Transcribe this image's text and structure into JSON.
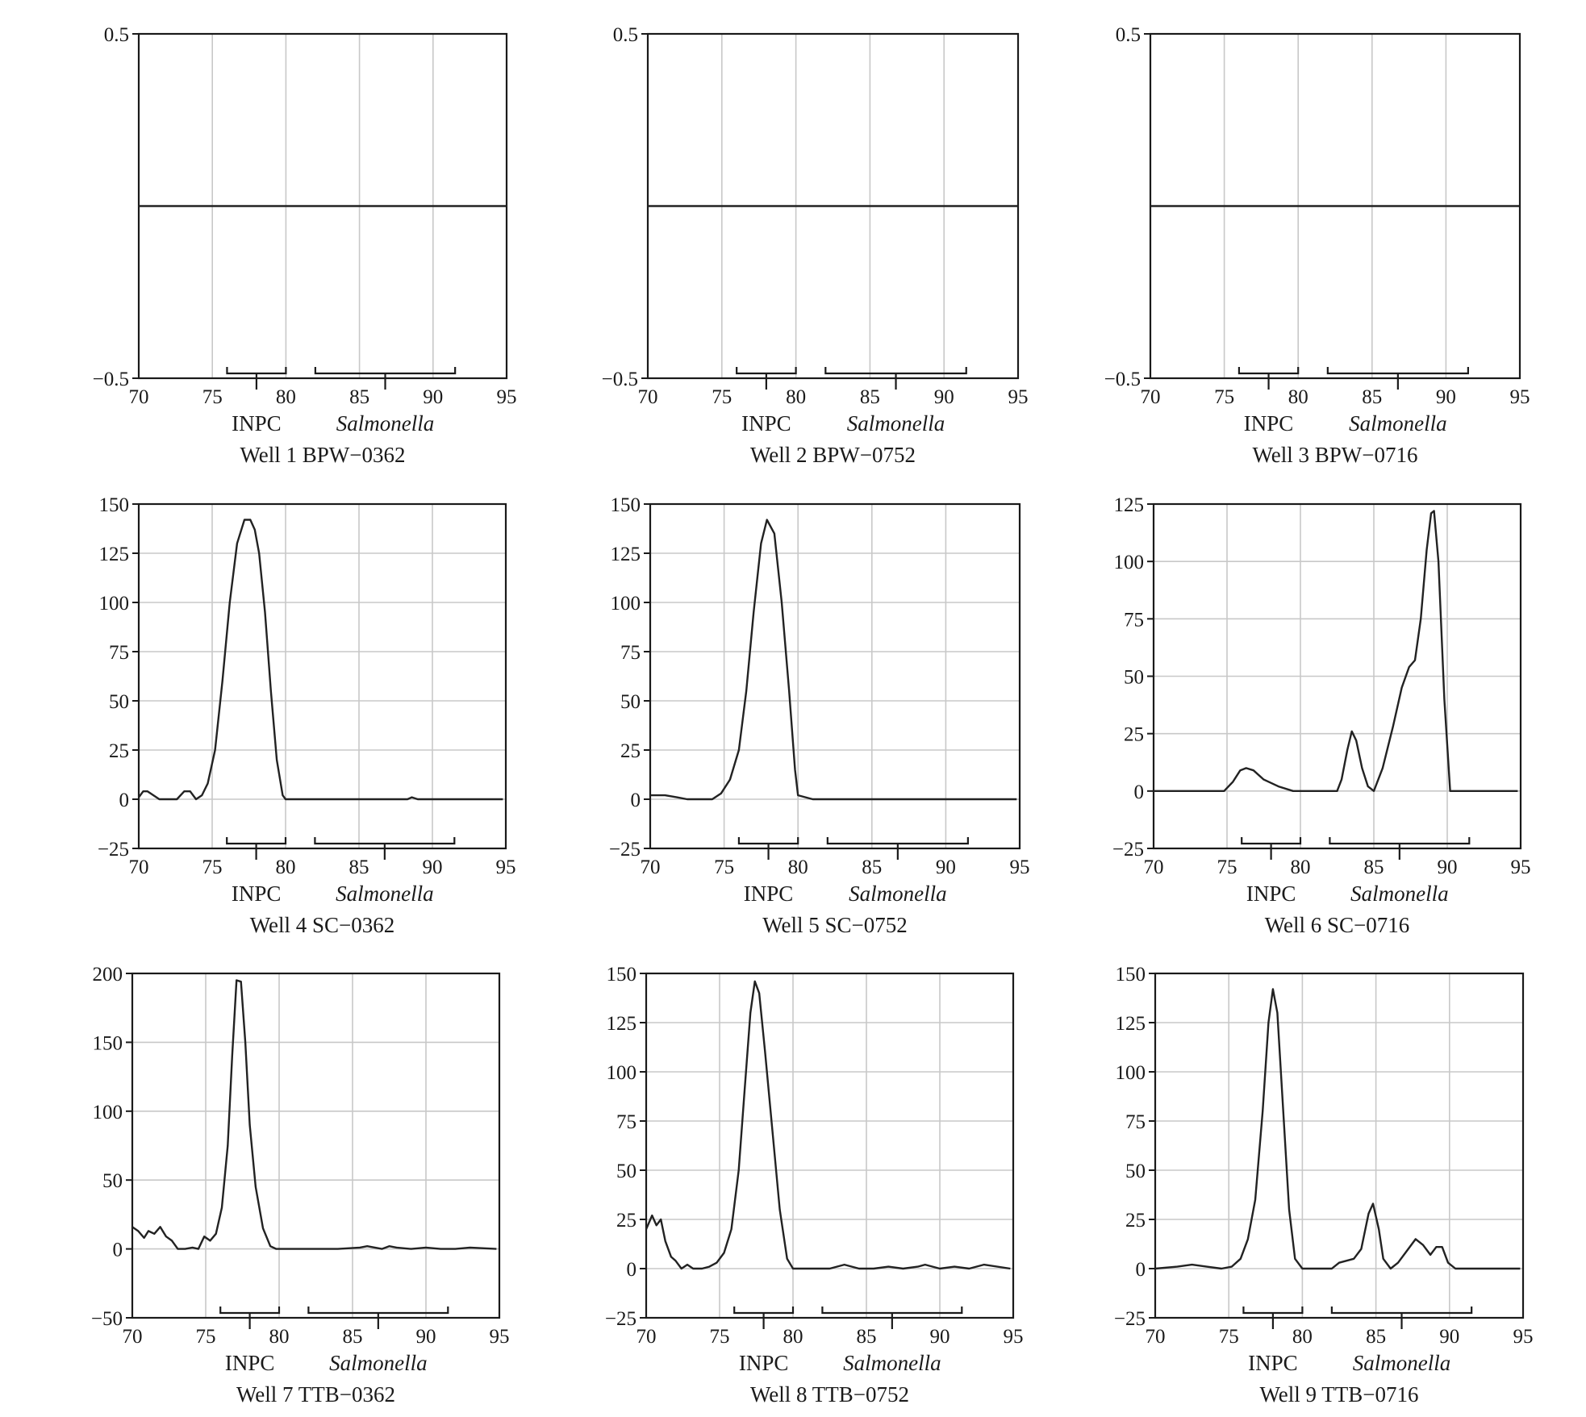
{
  "colors": {
    "axis": "#1a1a1a",
    "grid": "#c8c8c8",
    "line": "#222222"
  },
  "chart_data": [
    {
      "type": "line",
      "title": "Well 1 BPW−0362",
      "xlim": [
        70,
        95
      ],
      "ylim": [
        -0.5,
        0.5
      ],
      "xticks": [
        "70",
        "75",
        "80",
        "85",
        "90",
        "95"
      ],
      "yticks": [
        "0.5",
        "−0.5"
      ],
      "ytick_values": [
        0.5,
        -0.5
      ],
      "grid": {
        "vertical": true,
        "horizontal": false
      },
      "brackets": [
        {
          "label": "INPC",
          "from": 76,
          "to": 80
        },
        {
          "label": "Salmonella",
          "from": 82,
          "to": 91.5
        }
      ],
      "x": [
        70,
        95
      ],
      "y": [
        0,
        0
      ]
    },
    {
      "type": "line",
      "title": "Well 2 BPW−0752",
      "xlim": [
        70,
        95
      ],
      "ylim": [
        -0.5,
        0.5
      ],
      "xticks": [
        "70",
        "75",
        "80",
        "85",
        "90",
        "95"
      ],
      "yticks": [
        "0.5",
        "−0.5"
      ],
      "ytick_values": [
        0.5,
        -0.5
      ],
      "grid": {
        "vertical": true,
        "horizontal": false
      },
      "brackets": [
        {
          "label": "INPC",
          "from": 76,
          "to": 80
        },
        {
          "label": "Salmonella",
          "from": 82,
          "to": 91.5
        }
      ],
      "x": [
        70,
        95
      ],
      "y": [
        0,
        0
      ]
    },
    {
      "type": "line",
      "title": "Well 3 BPW−0716",
      "xlim": [
        70,
        95
      ],
      "ylim": [
        -0.5,
        0.5
      ],
      "xticks": [
        "70",
        "75",
        "80",
        "85",
        "90",
        "95"
      ],
      "yticks": [
        "0.5",
        "−0.5"
      ],
      "ytick_values": [
        0.5,
        -0.5
      ],
      "grid": {
        "vertical": true,
        "horizontal": false
      },
      "brackets": [
        {
          "label": "INPC",
          "from": 76,
          "to": 80
        },
        {
          "label": "Salmonella",
          "from": 82,
          "to": 91.5
        }
      ],
      "x": [
        70,
        95
      ],
      "y": [
        0,
        0
      ]
    },
    {
      "type": "line",
      "title": "Well 4 SC−0362",
      "xlim": [
        70,
        95
      ],
      "ylim": [
        -25,
        150
      ],
      "xticks": [
        "70",
        "75",
        "80",
        "85",
        "90",
        "95"
      ],
      "yticks": [
        "150",
        "125",
        "100",
        "75",
        "50",
        "25",
        "0",
        "−25"
      ],
      "ytick_values": [
        150,
        125,
        100,
        75,
        50,
        25,
        0,
        -25
      ],
      "grid": {
        "vertical": true,
        "horizontal": true
      },
      "brackets": [
        {
          "label": "INPC",
          "from": 76,
          "to": 80
        },
        {
          "label": "Salmonella",
          "from": 82,
          "to": 91.5
        }
      ],
      "x": [
        70,
        70.3,
        70.6,
        71,
        71.4,
        72,
        72.6,
        73.1,
        73.5,
        73.9,
        74.3,
        74.7,
        75.2,
        75.7,
        76.2,
        76.7,
        77.2,
        77.6,
        77.9,
        78.2,
        78.6,
        79,
        79.4,
        79.8,
        80,
        80.2,
        82,
        85,
        88.3,
        88.6,
        89,
        92,
        94.8
      ],
      "y": [
        1,
        4,
        4,
        2,
        0,
        0,
        0,
        4,
        4,
        0,
        2,
        8,
        25,
        60,
        100,
        130,
        142,
        142,
        137,
        125,
        95,
        55,
        20,
        2,
        0,
        0,
        0,
        0,
        0,
        1,
        0,
        0,
        0
      ]
    },
    {
      "type": "line",
      "title": "Well 5 SC−0752",
      "xlim": [
        70,
        95
      ],
      "ylim": [
        -25,
        150
      ],
      "xticks": [
        "70",
        "75",
        "80",
        "85",
        "90",
        "95"
      ],
      "yticks": [
        "150",
        "125",
        "100",
        "75",
        "50",
        "25",
        "0",
        "−25"
      ],
      "ytick_values": [
        150,
        125,
        100,
        75,
        50,
        25,
        0,
        -25
      ],
      "grid": {
        "vertical": true,
        "horizontal": true
      },
      "brackets": [
        {
          "label": "INPC",
          "from": 76,
          "to": 80
        },
        {
          "label": "Salmonella",
          "from": 82,
          "to": 91.5
        }
      ],
      "x": [
        70,
        71,
        71.8,
        72.5,
        73.5,
        74.2,
        74.8,
        75.4,
        76,
        76.5,
        77,
        77.5,
        77.9,
        78.4,
        78.9,
        79.4,
        79.8,
        80,
        81,
        85,
        90,
        94.8
      ],
      "y": [
        2,
        2,
        1,
        0,
        0,
        0,
        3,
        10,
        25,
        55,
        95,
        130,
        142,
        135,
        100,
        55,
        15,
        2,
        0,
        0,
        0,
        0
      ]
    },
    {
      "type": "line",
      "title": "Well 6 SC−0716",
      "xlim": [
        70,
        95
      ],
      "ylim": [
        -25,
        125
      ],
      "xticks": [
        "70",
        "75",
        "80",
        "85",
        "90",
        "95"
      ],
      "yticks": [
        "125",
        "100",
        "75",
        "50",
        "25",
        "0",
        "−25"
      ],
      "ytick_values": [
        125,
        100,
        75,
        50,
        25,
        0,
        -25
      ],
      "grid": {
        "vertical": true,
        "horizontal": true
      },
      "brackets": [
        {
          "label": "INPC",
          "from": 76,
          "to": 80
        },
        {
          "label": "Salmonella",
          "from": 82,
          "to": 91.5
        }
      ],
      "x": [
        70,
        73,
        74.8,
        75.4,
        75.9,
        76.3,
        76.8,
        77.5,
        78.5,
        79.5,
        80.5,
        82.5,
        82.8,
        83.2,
        83.5,
        83.8,
        84.2,
        84.6,
        85,
        85.6,
        86.3,
        86.9,
        87.4,
        87.8,
        88.2,
        88.6,
        88.9,
        89.1,
        89.4,
        89.8,
        90.2,
        91,
        94.8
      ],
      "y": [
        0,
        0,
        0,
        4,
        9,
        10,
        9,
        5,
        2,
        0,
        0,
        0,
        5,
        18,
        26,
        22,
        10,
        2,
        0,
        10,
        28,
        45,
        54,
        57,
        75,
        105,
        121,
        122,
        100,
        40,
        0,
        0,
        0
      ]
    },
    {
      "type": "line",
      "title": "Well 7 TTB−0362",
      "xlim": [
        70,
        95
      ],
      "ylim": [
        -50,
        200
      ],
      "xticks": [
        "70",
        "75",
        "80",
        "85",
        "90",
        "95"
      ],
      "yticks": [
        "200",
        "150",
        "100",
        "50",
        "0",
        "−50"
      ],
      "ytick_values": [
        200,
        150,
        100,
        50,
        0,
        -50
      ],
      "grid": {
        "vertical": true,
        "horizontal": true
      },
      "brackets": [
        {
          "label": "INPC",
          "from": 76,
          "to": 80
        },
        {
          "label": "Salmonella",
          "from": 82,
          "to": 91.5
        }
      ],
      "x": [
        70,
        70.4,
        70.8,
        71.1,
        71.5,
        71.9,
        72.3,
        72.7,
        73.1,
        73.6,
        74.1,
        74.5,
        74.9,
        75.3,
        75.7,
        76.1,
        76.5,
        76.8,
        77.1,
        77.4,
        77.7,
        78,
        78.4,
        78.9,
        79.4,
        79.8,
        80.2,
        82,
        84,
        85.5,
        86,
        87,
        87.5,
        88,
        89,
        90,
        91,
        92,
        93,
        94.8
      ],
      "y": [
        16,
        13,
        8,
        13,
        11,
        16,
        9,
        6,
        0,
        0,
        1,
        0,
        9,
        6,
        11,
        30,
        75,
        140,
        195,
        194,
        150,
        90,
        45,
        15,
        2,
        0,
        0,
        0,
        0,
        1,
        2,
        0,
        2,
        1,
        0,
        1,
        0,
        0,
        1,
        0
      ]
    },
    {
      "type": "line",
      "title": "Well 8 TTB−0752",
      "xlim": [
        70,
        95
      ],
      "ylim": [
        -25,
        150
      ],
      "xticks": [
        "70",
        "75",
        "80",
        "85",
        "90",
        "95"
      ],
      "yticks": [
        "150",
        "125",
        "100",
        "75",
        "50",
        "25",
        "0",
        "−25"
      ],
      "ytick_values": [
        150,
        125,
        100,
        75,
        50,
        25,
        0,
        -25
      ],
      "grid": {
        "vertical": true,
        "horizontal": true
      },
      "brackets": [
        {
          "label": "INPC",
          "from": 76,
          "to": 80
        },
        {
          "label": "Salmonella",
          "from": 82,
          "to": 91.5
        }
      ],
      "x": [
        70,
        70.4,
        70.7,
        71,
        71.3,
        71.7,
        72,
        72.4,
        72.8,
        73.2,
        73.8,
        74.3,
        74.8,
        75.3,
        75.8,
        76.3,
        76.7,
        77.1,
        77.4,
        77.7,
        78.1,
        78.6,
        79.1,
        79.6,
        80,
        81,
        82.5,
        83.5,
        84.5,
        85.5,
        86.5,
        87.5,
        88.5,
        89,
        90,
        91,
        92,
        93,
        94.8
      ],
      "y": [
        20,
        27,
        22,
        25,
        14,
        6,
        4,
        0,
        2,
        0,
        0,
        1,
        3,
        8,
        20,
        50,
        90,
        130,
        146,
        140,
        110,
        70,
        30,
        5,
        0,
        0,
        0,
        2,
        0,
        0,
        1,
        0,
        1,
        2,
        0,
        1,
        0,
        2,
        0
      ]
    },
    {
      "type": "line",
      "title": "Well 9 TTB−0716",
      "xlim": [
        70,
        95
      ],
      "ylim": [
        -25,
        150
      ],
      "xticks": [
        "70",
        "75",
        "80",
        "85",
        "90",
        "95"
      ],
      "yticks": [
        "150",
        "125",
        "100",
        "75",
        "50",
        "25",
        "0",
        "−25"
      ],
      "ytick_values": [
        150,
        125,
        100,
        75,
        50,
        25,
        0,
        -25
      ],
      "grid": {
        "vertical": true,
        "horizontal": true
      },
      "brackets": [
        {
          "label": "INPC",
          "from": 76,
          "to": 80
        },
        {
          "label": "Salmonella",
          "from": 82,
          "to": 91.5
        }
      ],
      "x": [
        70,
        71.5,
        72.5,
        73.5,
        74.5,
        75.2,
        75.8,
        76.3,
        76.8,
        77.3,
        77.7,
        78,
        78.3,
        78.7,
        79.1,
        79.5,
        80,
        82,
        82.5,
        83.5,
        84,
        84.5,
        84.8,
        85.2,
        85.5,
        86,
        86.5,
        87.2,
        87.7,
        88.2,
        88.7,
        89.1,
        89.5,
        89.9,
        90.4,
        91,
        94.8
      ],
      "y": [
        0,
        1,
        2,
        1,
        0,
        1,
        5,
        15,
        35,
        80,
        125,
        142,
        130,
        80,
        30,
        5,
        0,
        0,
        3,
        5,
        10,
        28,
        33,
        20,
        5,
        0,
        3,
        10,
        15,
        12,
        7,
        11,
        11,
        3,
        0,
        0,
        0
      ]
    }
  ]
}
